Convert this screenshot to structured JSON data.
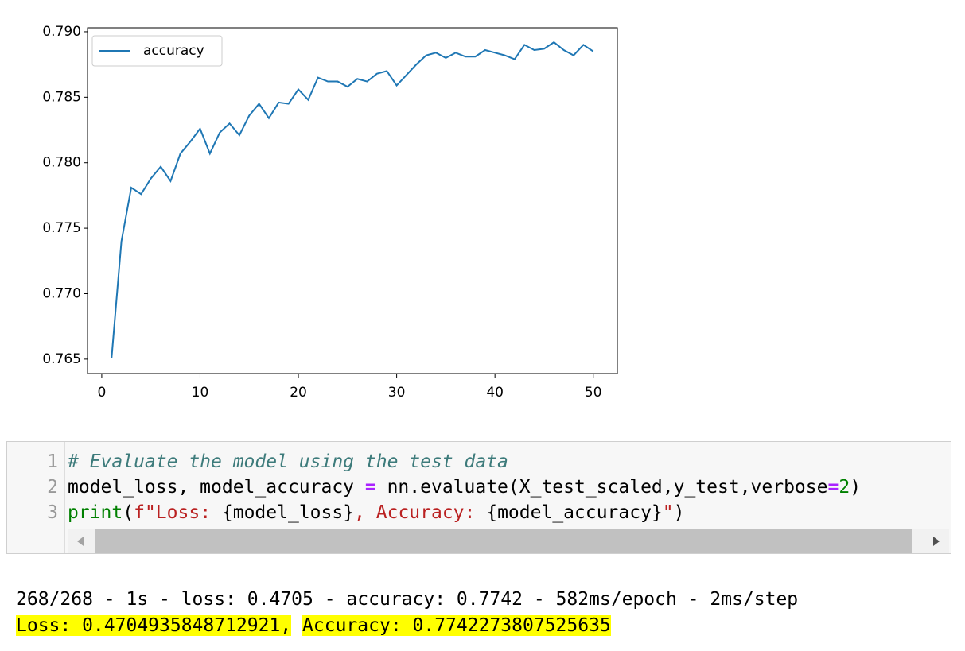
{
  "chart_data": {
    "type": "line",
    "x": [
      1,
      2,
      3,
      4,
      5,
      6,
      7,
      8,
      9,
      10,
      11,
      12,
      13,
      14,
      15,
      16,
      17,
      18,
      19,
      20,
      21,
      22,
      23,
      24,
      25,
      26,
      27,
      28,
      29,
      30,
      31,
      32,
      33,
      34,
      35,
      36,
      37,
      38,
      39,
      40,
      41,
      42,
      43,
      44,
      45,
      46,
      47,
      48,
      49,
      50
    ],
    "series": [
      {
        "name": "accuracy",
        "color": "#1f77b4",
        "values": [
          0.7651,
          0.774,
          0.7781,
          0.7776,
          0.7788,
          0.7797,
          0.7786,
          0.7807,
          0.7816,
          0.7826,
          0.7807,
          0.7823,
          0.783,
          0.7821,
          0.7836,
          0.7845,
          0.7834,
          0.7846,
          0.7845,
          0.7856,
          0.7848,
          0.7865,
          0.7862,
          0.7862,
          0.7858,
          0.7864,
          0.7862,
          0.7868,
          0.787,
          0.7859,
          0.7867,
          0.7875,
          0.7882,
          0.7884,
          0.788,
          0.7884,
          0.7881,
          0.7881,
          0.7886,
          0.7884,
          0.7882,
          0.7879,
          0.789,
          0.7886,
          0.7887,
          0.7892,
          0.7886,
          0.7882,
          0.789,
          0.7885
        ]
      }
    ],
    "xlim": [
      -1.45,
      52.45
    ],
    "xticks": [
      0,
      10,
      20,
      30,
      40,
      50
    ],
    "ylim": [
      0.7639,
      0.7903
    ],
    "yticks": [
      0.765,
      {
        "value": 0.77,
        "label": "0.770"
      },
      0.775,
      {
        "value": 0.78,
        "label": "0.780"
      },
      0.785,
      {
        "value": 0.79,
        "label": "0.790"
      }
    ],
    "legend": "upper left",
    "grid": false
  },
  "code": {
    "line_numbers": [
      1,
      2,
      3
    ],
    "lines": [
      [
        "# Evaluate the model using the test data"
      ],
      [
        "model_loss, model_accuracy ",
        "=",
        " nn.evaluate(X_test_scaled,y_test,verbose",
        "=",
        "2",
        ")"
      ],
      [
        "print",
        "(",
        "f\"Loss: ",
        "{model_loss}",
        ", Accuracy: ",
        "{model_accuracy}",
        "\"",
        ")"
      ]
    ]
  },
  "output": {
    "lines": [
      [
        "268/268 - 1s - loss: 0.4705 - accuracy: 0.7742 - 582ms/epoch - 2ms/step"
      ],
      [
        "Loss: 0.4704935848712921,",
        "Accuracy: 0.7742273807525635"
      ]
    ]
  }
}
